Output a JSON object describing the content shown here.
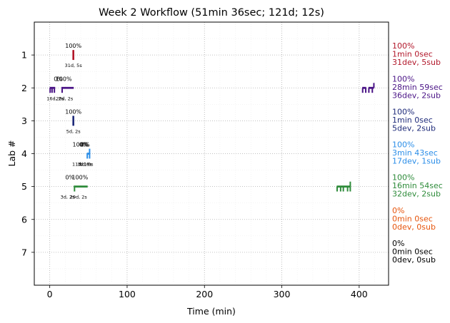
{
  "chart_data": {
    "type": "timeline",
    "title": "Week 2 Workflow (51min 36sec; 121d; 12s)",
    "xlabel": "Time (min)",
    "ylabel": "Lab #",
    "xlim": [
      -20,
      438
    ],
    "ylim": [
      8,
      0
    ],
    "xticks": [
      0,
      100,
      200,
      300,
      400
    ],
    "xticklabels": [
      "0",
      "100",
      "200",
      "300",
      "400"
    ],
    "yticks": [
      1,
      2,
      3,
      4,
      5,
      6,
      7
    ],
    "yticklabels": [
      "1",
      "2",
      "3",
      "4",
      "5",
      "6",
      "7"
    ],
    "grid": true,
    "labs": [
      {
        "lab": 1,
        "color": "#b2182b",
        "summary": [
          "100%",
          "1min 0sec",
          "31dev, 5sub"
        ],
        "annotations": [
          {
            "x": 30.5,
            "text": "100%",
            "pos": "above"
          },
          {
            "x": 30.5,
            "text": "31d, 5s",
            "pos": "below"
          }
        ],
        "segments": [
          [
            30.0,
            31.0
          ]
        ],
        "ticks": [
          [
            30.2,
            -0.15,
            0.15
          ],
          [
            30.8,
            -0.15,
            0.15
          ]
        ]
      },
      {
        "lab": 2,
        "color": "#4a1486",
        "summary": [
          "100%",
          "28min 59sec",
          "36dev, 2sub"
        ],
        "annotations": [
          {
            "x": 11,
            "text": "0%",
            "pos": "above"
          },
          {
            "x": 18,
            "text": "100%",
            "pos": "above"
          },
          {
            "x": 7,
            "text": "16d, 2s",
            "pos": "below"
          },
          {
            "x": 19,
            "text": "20d, 2s",
            "pos": "below"
          }
        ],
        "segments": [
          [
            0,
            7
          ],
          [
            15,
            31
          ],
          [
            404,
            409
          ],
          [
            412,
            419
          ]
        ],
        "ticks": [
          [
            0.5,
            0,
            0.15
          ],
          [
            3,
            0,
            0.15
          ],
          [
            6,
            0,
            0.15
          ],
          [
            16,
            0,
            0.15
          ],
          [
            404.5,
            0,
            0.15
          ],
          [
            408.5,
            0,
            0.15
          ],
          [
            412.5,
            0,
            0.15
          ],
          [
            417,
            0,
            0.15
          ],
          [
            419,
            -0.15,
            0
          ]
        ]
      },
      {
        "lab": 3,
        "color": "#1f2b7a",
        "summary": [
          "100%",
          "1min 0sec",
          "5dev, 2sub"
        ],
        "annotations": [
          {
            "x": 30.5,
            "text": "100%",
            "pos": "above"
          },
          {
            "x": 30.5,
            "text": "5d, 2s",
            "pos": "below"
          }
        ],
        "segments": [
          [
            30.0,
            31.0
          ]
        ],
        "ticks": [
          [
            30.2,
            -0.15,
            0.15
          ],
          [
            30.8,
            -0.15,
            0.15
          ]
        ]
      },
      {
        "lab": 4,
        "color": "#2b8ee8",
        "summary": [
          "100%",
          "3min 43sec",
          "17dev, 1sub"
        ],
        "annotations": [
          {
            "x": 40,
            "text": "100%",
            "pos": "above"
          },
          {
            "x": 44,
            "text": "0%",
            "pos": "above"
          },
          {
            "x": 46,
            "text": "0%",
            "pos": "above"
          },
          {
            "x": 40,
            "text": "11d, 1s",
            "pos": "below"
          },
          {
            "x": 45,
            "text": "3d, 0s",
            "pos": "below"
          },
          {
            "x": 47,
            "text": "3d, 0s",
            "pos": "below"
          }
        ],
        "segments": [
          [
            48.0,
            52.0
          ]
        ],
        "ticks": [
          [
            48.5,
            0,
            0.15
          ],
          [
            51.5,
            -0.15,
            0.15
          ]
        ]
      },
      {
        "lab": 5,
        "color": "#2e8b3a",
        "summary": [
          "100%",
          "16min 54sec",
          "32dev, 2sub"
        ],
        "annotations": [
          {
            "x": 26,
            "text": "0%",
            "pos": "above"
          },
          {
            "x": 39,
            "text": "100%",
            "pos": "above"
          },
          {
            "x": 23,
            "text": "3d, 2s",
            "pos": "below"
          },
          {
            "x": 37,
            "text": "29d, 2s",
            "pos": "below"
          }
        ],
        "segments": [
          [
            31,
            49
          ],
          [
            371,
            389
          ]
        ],
        "ticks": [
          [
            32,
            0,
            0.15
          ],
          [
            371.5,
            0,
            0.15
          ],
          [
            376,
            0,
            0.15
          ],
          [
            379.5,
            0,
            0.15
          ],
          [
            385,
            0,
            0.15
          ],
          [
            388.5,
            -0.15,
            0.15
          ]
        ]
      },
      {
        "lab": 6,
        "color": "#e6550d",
        "summary": [
          "0%",
          "0min 0sec",
          "0dev, 0sub"
        ],
        "annotations": [],
        "segments": [],
        "ticks": []
      },
      {
        "lab": 7,
        "color": "#000000",
        "summary": [
          "0%",
          "0min 0sec",
          "0dev, 0sub"
        ],
        "annotations": [],
        "segments": [],
        "ticks": []
      }
    ]
  }
}
